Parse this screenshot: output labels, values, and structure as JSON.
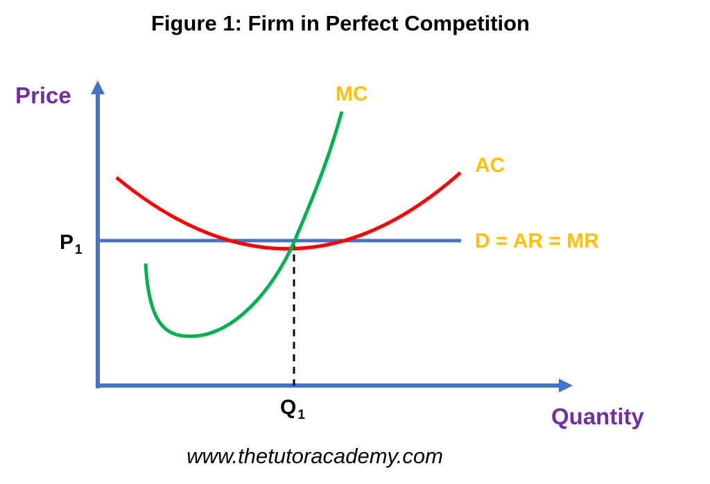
{
  "title": "Figure 1: Firm in Perfect Competition",
  "axes": {
    "y_label": "Price",
    "x_label": "Quantity",
    "label_color": "#7030a0",
    "axis_color": "#4472c4"
  },
  "curves": {
    "mc": {
      "label": "MC",
      "color": "#00b050"
    },
    "ac": {
      "label": "AC",
      "color": "#ff0000"
    },
    "demand": {
      "label": "D = AR = MR",
      "color": "#4472c4"
    },
    "label_color": "#ffc000"
  },
  "points": {
    "price": {
      "main": "P",
      "sub": "1"
    },
    "quantity": {
      "main": "Q",
      "sub": "1"
    }
  },
  "footer": "www.thetutoracademy.com"
}
